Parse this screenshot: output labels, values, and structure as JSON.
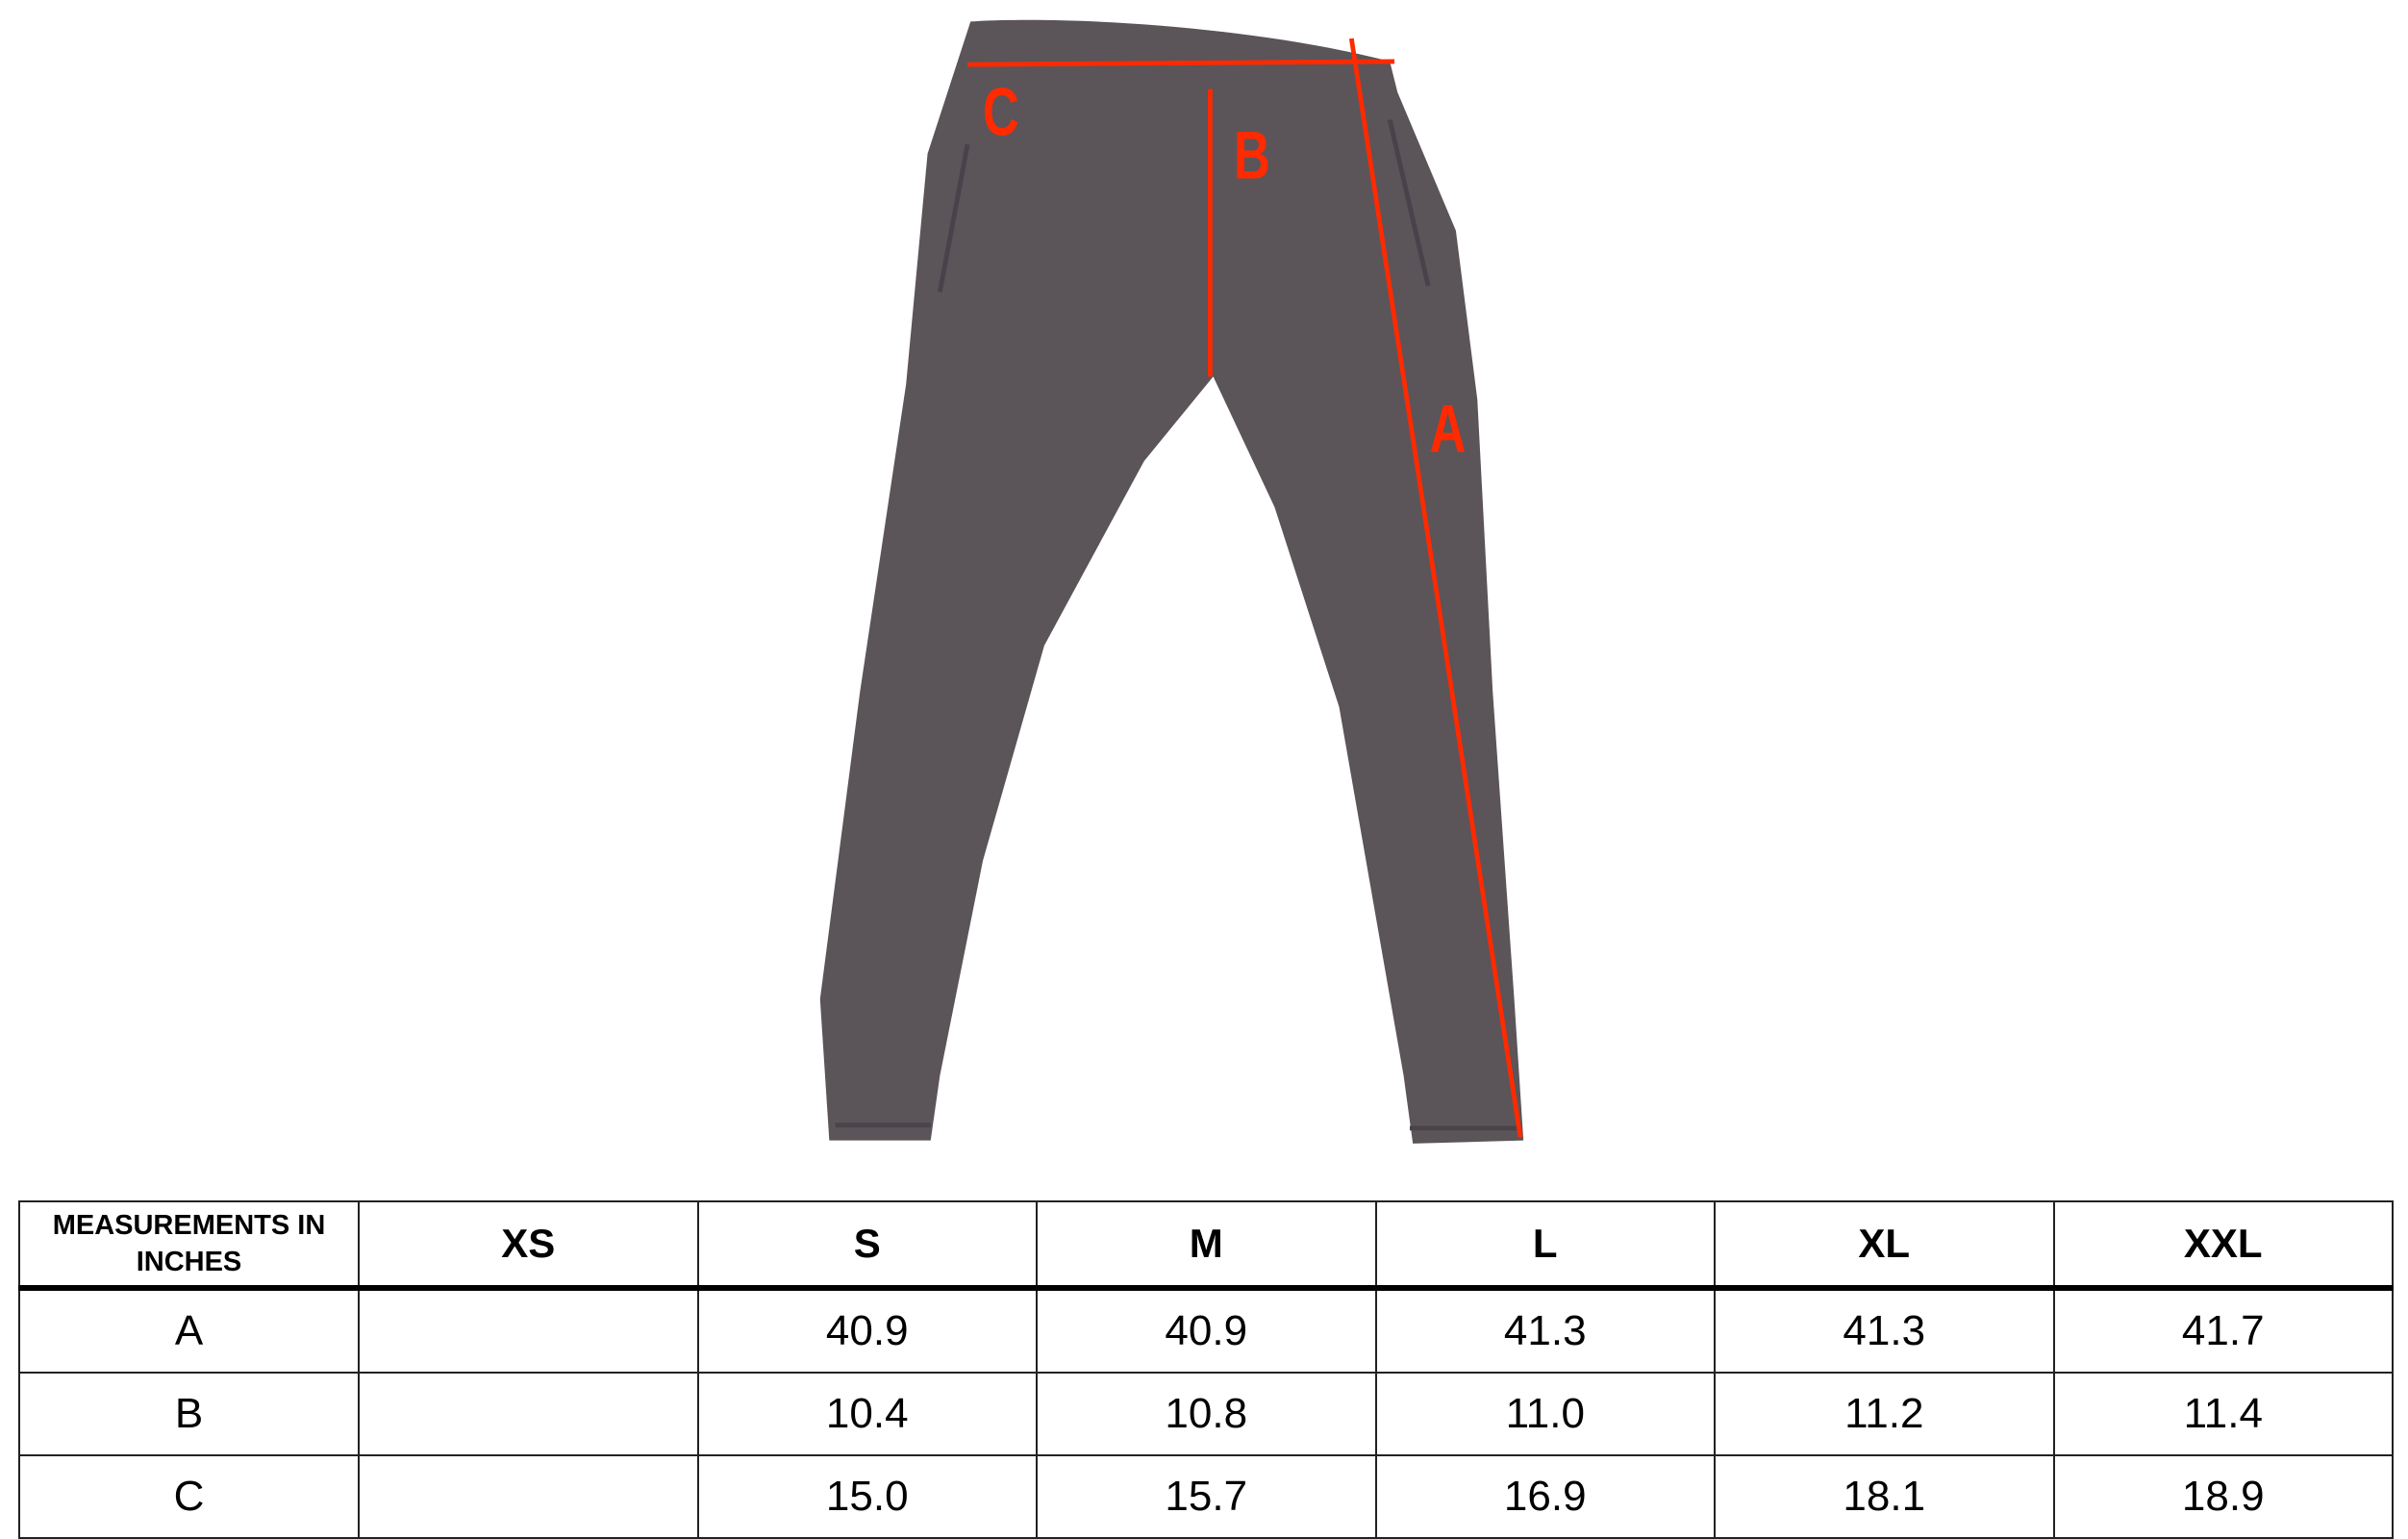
{
  "diagram": {
    "garment_color": "#5b5459",
    "measure_color": "#ff2a00",
    "labels": [
      "C",
      "B",
      "A"
    ]
  },
  "table": {
    "header": [
      "MEASUREMENTS IN INCHES",
      "XS",
      "S",
      "M",
      "L",
      "XL",
      "XXL"
    ],
    "rows": [
      [
        "A",
        "",
        "40.9",
        "40.9",
        "41.3",
        "41.3",
        "41.7"
      ],
      [
        "B",
        "",
        "10.4",
        "10.8",
        "11.0",
        "11.2",
        "11.4"
      ],
      [
        "C",
        "",
        "15.0",
        "15.7",
        "16.9",
        "18.1",
        "18.9"
      ]
    ]
  }
}
